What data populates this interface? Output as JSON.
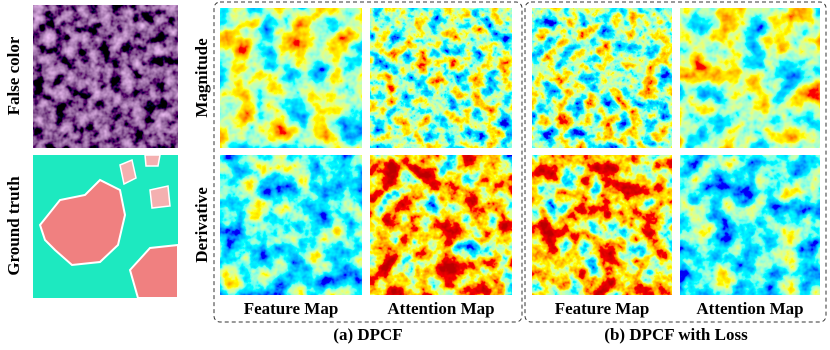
{
  "left_labels": [
    "False color",
    "Ground truth"
  ],
  "row_labels": [
    "Magnitude",
    "Derivative"
  ],
  "panels": [
    {
      "caption": "(a) DPCF",
      "columns": [
        "Feature Map",
        "Attention Map"
      ]
    },
    {
      "caption": "(b) DPCF with Loss",
      "columns": [
        "Feature Map",
        "Attention Map"
      ]
    }
  ]
}
